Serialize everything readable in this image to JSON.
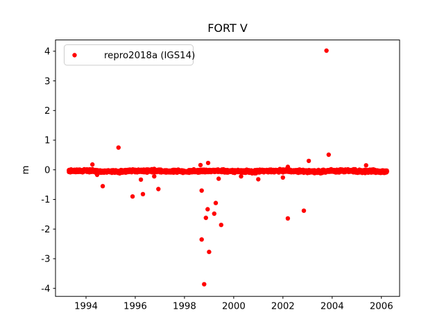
{
  "chart_data": {
    "type": "scatter",
    "title": "FORT V",
    "xlabel": "",
    "ylabel": "m",
    "x_ticks": [
      1994,
      1996,
      1998,
      2000,
      2002,
      2004,
      2006
    ],
    "y_ticks": [
      4,
      3,
      2,
      1,
      0,
      -1,
      -2,
      -3,
      -4
    ],
    "xlim": [
      1992.76,
      2006.74
    ],
    "ylim": [
      -4.27,
      4.38
    ],
    "grid": false,
    "background_color": "#ffffff",
    "axis_color": "#000000",
    "legend": {
      "location": "upper left",
      "border_color": "#cccccc",
      "label": "repro2018a (IGS14)"
    },
    "series": [
      {
        "name": "repro2018a (IGS14)",
        "color": "#ff0000",
        "marker": "dot",
        "marker_radius_px": 3.2,
        "band": {
          "description": "dense daily vertical-position residuals hugging 0 m",
          "x_start": 1993.3,
          "x_end": 2006.23,
          "mean": -0.045,
          "sigma": 0.022,
          "clip": 0.06,
          "wiggle_amplitude": 0.012,
          "n_points": 2600
        },
        "outliers": [
          [
            1994.26,
            0.18
          ],
          [
            1994.45,
            -0.17
          ],
          [
            1994.68,
            -0.55
          ],
          [
            1995.32,
            0.75
          ],
          [
            1995.89,
            -0.9
          ],
          [
            1996.23,
            -0.33
          ],
          [
            1996.31,
            -0.82
          ],
          [
            1996.77,
            -0.22
          ],
          [
            1996.94,
            -0.65
          ],
          [
            1998.65,
            0.16
          ],
          [
            1998.7,
            -0.7
          ],
          [
            1998.7,
            -2.35
          ],
          [
            1998.8,
            -3.86
          ],
          [
            1998.87,
            -1.62
          ],
          [
            1998.94,
            -1.33
          ],
          [
            1998.96,
            0.23
          ],
          [
            1999.0,
            -2.77
          ],
          [
            1999.21,
            -1.48
          ],
          [
            1999.27,
            -1.12
          ],
          [
            1999.39,
            -0.3
          ],
          [
            1999.49,
            -1.86
          ],
          [
            2000.3,
            -0.22
          ],
          [
            2001.0,
            -0.32
          ],
          [
            2002.0,
            -0.26
          ],
          [
            2002.2,
            0.1
          ],
          [
            2002.2,
            -1.64
          ],
          [
            2002.85,
            -1.38
          ],
          [
            2003.05,
            0.3
          ],
          [
            2003.77,
            4.02
          ],
          [
            2003.86,
            0.51
          ],
          [
            2005.38,
            0.15
          ]
        ]
      }
    ]
  }
}
